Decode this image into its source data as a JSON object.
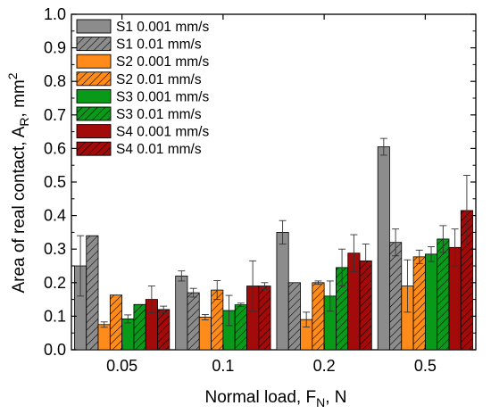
{
  "chart_data": {
    "type": "bar",
    "xlabel": {
      "main": "Normal load,   F",
      "sub": "N",
      "rest": ",   N"
    },
    "ylabel": {
      "main": "Area of real contact,   A",
      "sub": "R",
      "rest": ",   mm",
      "sup": "2"
    },
    "categories": [
      "0.05",
      "0.1",
      "0.2",
      "0.5"
    ],
    "ylim": [
      0,
      1.0
    ],
    "yticks": [
      "0.0",
      "0.1",
      "0.2",
      "0.3",
      "0.4",
      "0.5",
      "0.6",
      "0.7",
      "0.8",
      "0.9",
      "1.0"
    ],
    "legend_position": "top-left",
    "grid": false,
    "series": [
      {
        "name": "S1 0.001 mm/s",
        "color": "#8c8c8c",
        "hatch": false,
        "values": [
          0.25,
          0.22,
          0.35,
          0.605
        ],
        "errors": [
          0.09,
          0.015,
          0.035,
          0.025
        ]
      },
      {
        "name": "S1 0.01 mm/s",
        "color": "#8c8c8c",
        "hatch": true,
        "values": [
          0.34,
          0.17,
          0.2,
          0.32
        ],
        "errors": [
          0.0,
          0.013,
          0.0,
          0.04
        ]
      },
      {
        "name": "S2 0.001 mm/s",
        "color": "#ff8c1a",
        "hatch": false,
        "values": [
          0.075,
          0.097,
          0.09,
          0.19
        ],
        "errors": [
          0.008,
          0.008,
          0.022,
          0.078
        ]
      },
      {
        "name": "S2 0.01 mm/s",
        "color": "#ff8c1a",
        "hatch": true,
        "values": [
          0.163,
          0.178,
          0.2,
          0.277
        ],
        "errors": [
          0.0,
          0.028,
          0.005,
          0.02
        ]
      },
      {
        "name": "S3 0.001 mm/s",
        "color": "#0a9a1a",
        "hatch": false,
        "values": [
          0.092,
          0.117,
          0.16,
          0.285
        ],
        "errors": [
          0.012,
          0.045,
          0.045,
          0.022
        ]
      },
      {
        "name": "S3 0.01 mm/s",
        "color": "#0a9a1a",
        "hatch": true,
        "values": [
          0.135,
          0.134,
          0.245,
          0.33
        ],
        "errors": [
          0.0,
          0.005,
          0.055,
          0.04
        ]
      },
      {
        "name": "S4 0.001 mm/s",
        "color": "#a30a0a",
        "hatch": false,
        "values": [
          0.15,
          0.19,
          0.288,
          0.305
        ],
        "errors": [
          0.04,
          0.075,
          0.055,
          0.055
        ]
      },
      {
        "name": "S4 0.01 mm/s",
        "color": "#a30a0a",
        "hatch": true,
        "values": [
          0.12,
          0.19,
          0.265,
          0.415
        ],
        "errors": [
          0.01,
          0.01,
          0.05,
          0.105
        ]
      }
    ]
  }
}
